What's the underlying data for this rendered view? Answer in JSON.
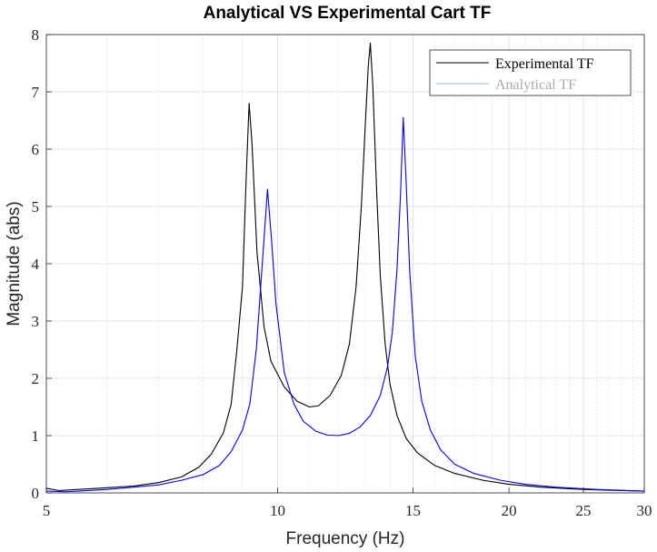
{
  "chart_data": {
    "type": "line",
    "title": "Analytical VS Experimental Cart TF",
    "xlabel": "Frequency  (Hz)",
    "ylabel": "Magnitude (abs)",
    "xscale": "log",
    "xlim": [
      5,
      30
    ],
    "ylim": [
      0,
      8
    ],
    "xticks": [
      5,
      10,
      15,
      20,
      25,
      30
    ],
    "xtick_labels": [
      "5",
      "10",
      "15",
      "20",
      "25",
      "30"
    ],
    "yticks": [
      0,
      1,
      2,
      3,
      4,
      5,
      6,
      7,
      8
    ],
    "ytick_labels": [
      "0",
      "1",
      "2",
      "3",
      "4",
      "5",
      "6",
      "7",
      "8"
    ],
    "grid": true,
    "legend_position": "top-right",
    "series": [
      {
        "name": "Experimental TF",
        "color": "#000000",
        "points": [
          [
            5.0,
            0.08
          ],
          [
            5.2,
            0.04
          ],
          [
            5.5,
            0.06
          ],
          [
            6.0,
            0.09
          ],
          [
            6.5,
            0.12
          ],
          [
            7.0,
            0.18
          ],
          [
            7.5,
            0.28
          ],
          [
            7.9,
            0.45
          ],
          [
            8.2,
            0.68
          ],
          [
            8.5,
            1.05
          ],
          [
            8.7,
            1.55
          ],
          [
            8.85,
            2.5
          ],
          [
            9.0,
            3.6
          ],
          [
            9.1,
            5.5
          ],
          [
            9.18,
            6.8
          ],
          [
            9.26,
            6.1
          ],
          [
            9.4,
            4.2
          ],
          [
            9.6,
            2.9
          ],
          [
            9.8,
            2.3
          ],
          [
            10.2,
            1.85
          ],
          [
            10.6,
            1.6
          ],
          [
            11.0,
            1.5
          ],
          [
            11.3,
            1.52
          ],
          [
            11.7,
            1.7
          ],
          [
            12.1,
            2.05
          ],
          [
            12.4,
            2.6
          ],
          [
            12.65,
            3.6
          ],
          [
            12.85,
            5.0
          ],
          [
            13.0,
            6.4
          ],
          [
            13.12,
            7.45
          ],
          [
            13.2,
            7.85
          ],
          [
            13.3,
            7.1
          ],
          [
            13.45,
            5.3
          ],
          [
            13.6,
            3.8
          ],
          [
            13.8,
            2.6
          ],
          [
            14.0,
            1.9
          ],
          [
            14.3,
            1.35
          ],
          [
            14.7,
            0.95
          ],
          [
            15.2,
            0.7
          ],
          [
            16.0,
            0.48
          ],
          [
            17.0,
            0.34
          ],
          [
            18.5,
            0.22
          ],
          [
            20.0,
            0.15
          ],
          [
            22.0,
            0.1
          ],
          [
            25.0,
            0.06
          ],
          [
            28.0,
            0.04
          ],
          [
            30.0,
            0.03
          ]
        ]
      },
      {
        "name": "Analytical TF",
        "color": "#0000ff",
        "points": [
          [
            5.0,
            0.03
          ],
          [
            5.3,
            0.02
          ],
          [
            5.5,
            0.03
          ],
          [
            6.0,
            0.06
          ],
          [
            6.5,
            0.1
          ],
          [
            7.0,
            0.14
          ],
          [
            7.5,
            0.22
          ],
          [
            8.0,
            0.32
          ],
          [
            8.4,
            0.48
          ],
          [
            8.7,
            0.72
          ],
          [
            9.0,
            1.1
          ],
          [
            9.2,
            1.55
          ],
          [
            9.38,
            2.5
          ],
          [
            9.55,
            4.0
          ],
          [
            9.7,
            5.3
          ],
          [
            9.82,
            4.4
          ],
          [
            9.95,
            3.3
          ],
          [
            10.2,
            2.1
          ],
          [
            10.5,
            1.55
          ],
          [
            10.8,
            1.25
          ],
          [
            11.2,
            1.08
          ],
          [
            11.6,
            1.01
          ],
          [
            12.0,
            1.0
          ],
          [
            12.4,
            1.04
          ],
          [
            12.8,
            1.15
          ],
          [
            13.2,
            1.35
          ],
          [
            13.6,
            1.7
          ],
          [
            13.9,
            2.2
          ],
          [
            14.1,
            2.8
          ],
          [
            14.3,
            3.9
          ],
          [
            14.45,
            5.2
          ],
          [
            14.57,
            6.55
          ],
          [
            14.7,
            5.4
          ],
          [
            14.85,
            3.9
          ],
          [
            15.1,
            2.4
          ],
          [
            15.4,
            1.6
          ],
          [
            15.8,
            1.1
          ],
          [
            16.3,
            0.75
          ],
          [
            17.0,
            0.5
          ],
          [
            18.0,
            0.34
          ],
          [
            19.5,
            0.22
          ],
          [
            21.0,
            0.15
          ],
          [
            23.0,
            0.1
          ],
          [
            26.0,
            0.06
          ],
          [
            30.0,
            0.03
          ]
        ]
      }
    ]
  }
}
